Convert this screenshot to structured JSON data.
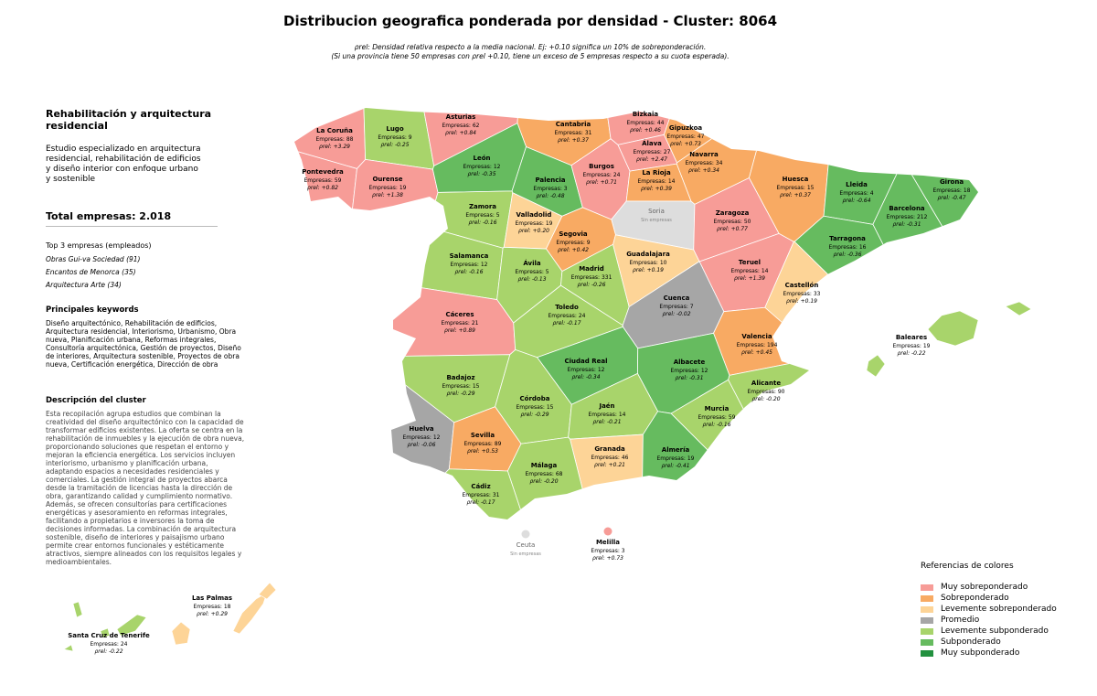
{
  "header": {
    "title": "Distribucion geografica ponderada por densidad - Cluster: 8064",
    "note_1": "ρrel: Densidad relativa respecto a la media nacional. Ej: +0.10 significa un 10% de sobreponderación.",
    "note_2": "(Si una provincia tiene 50 empresas con ρrel +0.10, tiene un exceso de 5 empresas respecto a su cuota esperada)."
  },
  "panel": {
    "title": "Rehabilitación y arquitectura residencial",
    "summary": "Estudio especializado en arquitectura residencial, rehabilitación de edificios y diseño interior con enfoque urbano y sostenible",
    "total": "Total empresas: 2.018",
    "top_heading": "Top 3 empresas (empleados)",
    "top": [
      "Obras Gui-va Sociedad (91)",
      "Encantos de Menorca (35)",
      "Arquitectura Arte (34)"
    ],
    "keywords_heading": "Principales keywords",
    "keywords": "Diseño arquitectónico, Rehabilitación de edificios, Arquitectura residencial, Interiorismo, Urbanismo, Obra nueva, Planificación urbana, Reformas integrales, Consultoría arquitectónica, Gestión de proyectos, Diseño de interiores, Arquitectura sostenible, Proyectos de obra nueva, Certificación energética, Dirección de obra",
    "description_heading": "Descripción del cluster",
    "description": "Esta recopilación agrupa estudios que combinan la creatividad del diseño arquitectónico con la capacidad de transformar edificios existentes. La oferta se centra en la rehabilitación de inmuebles y la ejecución de obra nueva, proporcionando soluciones que respetan el entorno y mejoran la eficiencia energética. Los servicios incluyen interiorismo, urbanismo y planificación urbana, adaptando espacios a necesidades residenciales y comerciales. La gestión integral de proyectos abarca desde la tramitación de licencias hasta la dirección de obra, garantizando calidad y cumplimiento normativo. Además, se ofrecen consultorías para certificaciones energéticas y asesoramiento en reformas integrales, facilitando a propietarios e inversores la toma de decisiones informadas. La combinación de arquitectura sostenible, diseño de interiores y paisajismo urbano permite crear entornos funcionales y estéticamente atractivos, siempre alineados con los requisitos legales y medioambientales."
  },
  "legend": {
    "title": "Referencias de colores",
    "no_data_color": "#dddddd",
    "items": [
      {
        "name": "Muy sobreponderado",
        "color": "#f79c97"
      },
      {
        "name": "Sobreponderado",
        "color": "#f8aa63"
      },
      {
        "name": "Levemente sobreponderado",
        "color": "#fdd497"
      },
      {
        "name": "Promedio",
        "color": "#a6a6a6"
      },
      {
        "name": "Levemente subponderado",
        "color": "#a8d46b"
      },
      {
        "name": "Subponderado",
        "color": "#66bb5f"
      },
      {
        "name": "Muy subponderado",
        "color": "#22913f"
      }
    ]
  },
  "provinces": [
    {
      "name": "La Coruña",
      "empresas": "Empresas: 88",
      "rho": "ρrel: +3.29",
      "category": 0
    },
    {
      "name": "Lugo",
      "empresas": "Empresas: 9",
      "rho": "ρrel: -0.25",
      "category": 4
    },
    {
      "name": "Asturias",
      "empresas": "Empresas: 62",
      "rho": "ρrel: +0.84",
      "category": 0
    },
    {
      "name": "Cantabria",
      "empresas": "Empresas: 31",
      "rho": "ρrel: +0.37",
      "category": 1
    },
    {
      "name": "Bizkaia",
      "empresas": "Empresas: 44",
      "rho": "ρrel: +0.46",
      "category": 0
    },
    {
      "name": "Gipuzkoa",
      "empresas": "Empresas: 47",
      "rho": "ρrel: +0.73",
      "category": 1
    },
    {
      "name": "Álava",
      "empresas": "Empresas: 27",
      "rho": "ρrel: +2.47",
      "category": 0
    },
    {
      "name": "Navarra",
      "empresas": "Empresas: 34",
      "rho": "ρrel: +0.34",
      "category": 1
    },
    {
      "name": "Pontevedra",
      "empresas": "Empresas: 59",
      "rho": "ρrel: +0.82",
      "category": 0
    },
    {
      "name": "Ourense",
      "empresas": "Empresas: 19",
      "rho": "ρrel: +1.38",
      "category": 0
    },
    {
      "name": "León",
      "empresas": "Empresas: 12",
      "rho": "ρrel: -0.35",
      "category": 5
    },
    {
      "name": "Palencia",
      "empresas": "Empresas: 3",
      "rho": "ρrel: -0.48",
      "category": 5
    },
    {
      "name": "Burgos",
      "empresas": "Empresas: 24",
      "rho": "ρrel: +0.71",
      "category": 0
    },
    {
      "name": "La Rioja",
      "empresas": "Empresas: 14",
      "rho": "ρrel: +0.39",
      "category": 1
    },
    {
      "name": "Huesca",
      "empresas": "Empresas: 15",
      "rho": "ρrel: +0.37",
      "category": 1
    },
    {
      "name": "Lleida",
      "empresas": "Empresas: 4",
      "rho": "ρrel: -0.64",
      "category": 5
    },
    {
      "name": "Girona",
      "empresas": "Empresas: 18",
      "rho": "ρrel: -0.47",
      "category": 5
    },
    {
      "name": "Barcelona",
      "empresas": "Empresas: 212",
      "rho": "ρrel: -0.31",
      "category": 5
    },
    {
      "name": "Tarragona",
      "empresas": "Empresas: 16",
      "rho": "ρrel: -0.36",
      "category": 5
    },
    {
      "name": "Zamora",
      "empresas": "Empresas: 5",
      "rho": "ρrel: -0.16",
      "category": 4
    },
    {
      "name": "Valladolid",
      "empresas": "Empresas: 19",
      "rho": "ρrel: +0.20",
      "category": 2
    },
    {
      "name": "Soria",
      "empresas": "Sin empresas",
      "category": null
    },
    {
      "name": "Zaragoza",
      "empresas": "Empresas: 50",
      "rho": "ρrel: +0.77",
      "category": 0
    },
    {
      "name": "Segovia",
      "empresas": "Empresas: 9",
      "rho": "ρrel: +0.42",
      "category": 1
    },
    {
      "name": "Salamanca",
      "empresas": "Empresas: 12",
      "rho": "ρrel: -0.16",
      "category": 4
    },
    {
      "name": "Ávila",
      "empresas": "Empresas: 5",
      "rho": "ρrel: -0.13",
      "category": 4
    },
    {
      "name": "Madrid",
      "empresas": "Empresas: 331",
      "rho": "ρrel: -0.26",
      "category": 4
    },
    {
      "name": "Guadalajara",
      "empresas": "Empresas: 10",
      "rho": "ρrel: +0.19",
      "category": 2
    },
    {
      "name": "Teruel",
      "empresas": "Empresas: 14",
      "rho": "ρrel: +1.39",
      "category": 0
    },
    {
      "name": "Castellón",
      "empresas": "Empresas: 33",
      "rho": "ρrel: +0.19",
      "category": 2
    },
    {
      "name": "Cáceres",
      "empresas": "Empresas: 21",
      "rho": "ρrel: +0.89",
      "category": 0
    },
    {
      "name": "Toledo",
      "empresas": "Empresas: 24",
      "rho": "ρrel: -0.17",
      "category": 4
    },
    {
      "name": "Cuenca",
      "empresas": "Empresas: 7",
      "rho": "ρrel: -0.02",
      "category": 3
    },
    {
      "name": "Valencia",
      "empresas": "Empresas: 194",
      "rho": "ρrel: +0.45",
      "category": 1
    },
    {
      "name": "Baleares",
      "empresas": "Empresas: 19",
      "rho": "ρrel: -0.22",
      "category": 4
    },
    {
      "name": "Badajoz",
      "empresas": "Empresas: 15",
      "rho": "ρrel: -0.29",
      "category": 4
    },
    {
      "name": "Ciudad Real",
      "empresas": "Empresas: 12",
      "rho": "ρrel: -0.34",
      "category": 5
    },
    {
      "name": "Albacete",
      "empresas": "Empresas: 12",
      "rho": "ρrel: -0.31",
      "category": 5
    },
    {
      "name": "Alicante",
      "empresas": "Empresas: 90",
      "rho": "ρrel: -0.20",
      "category": 4
    },
    {
      "name": "Córdoba",
      "empresas": "Empresas: 15",
      "rho": "ρrel: -0.29",
      "category": 4
    },
    {
      "name": "Jaén",
      "empresas": "Empresas: 14",
      "rho": "ρrel: -0.21",
      "category": 4
    },
    {
      "name": "Murcia",
      "empresas": "Empresas: 59",
      "rho": "ρrel: -0.16",
      "category": 4
    },
    {
      "name": "Huelva",
      "empresas": "Empresas: 12",
      "rho": "ρrel: -0.06",
      "category": 3
    },
    {
      "name": "Sevilla",
      "empresas": "Empresas: 89",
      "rho": "ρrel: +0.53",
      "category": 1
    },
    {
      "name": "Granada",
      "empresas": "Empresas: 46",
      "rho": "ρrel: +0.21",
      "category": 2
    },
    {
      "name": "Almería",
      "empresas": "Empresas: 19",
      "rho": "ρrel: -0.41",
      "category": 5
    },
    {
      "name": "Málaga",
      "empresas": "Empresas: 68",
      "rho": "ρrel: -0.20",
      "category": 4
    },
    {
      "name": "Cádiz",
      "empresas": "Empresas: 31",
      "rho": "ρrel: -0.17",
      "category": 4
    },
    {
      "name": "Ceuta",
      "empresas": "Sin empresas",
      "category": null
    },
    {
      "name": "Melilla",
      "empresas": "Empresas: 3",
      "rho": "ρrel: +0.73",
      "category": 0
    },
    {
      "name": "Las Palmas",
      "empresas": "Empresas: 18",
      "rho": "ρrel: +0.29",
      "category": 2
    },
    {
      "name": "Santa Cruz de Tenerife",
      "empresas": "Empresas: 24",
      "rho": "ρrel: -0.22",
      "category": 4
    }
  ]
}
